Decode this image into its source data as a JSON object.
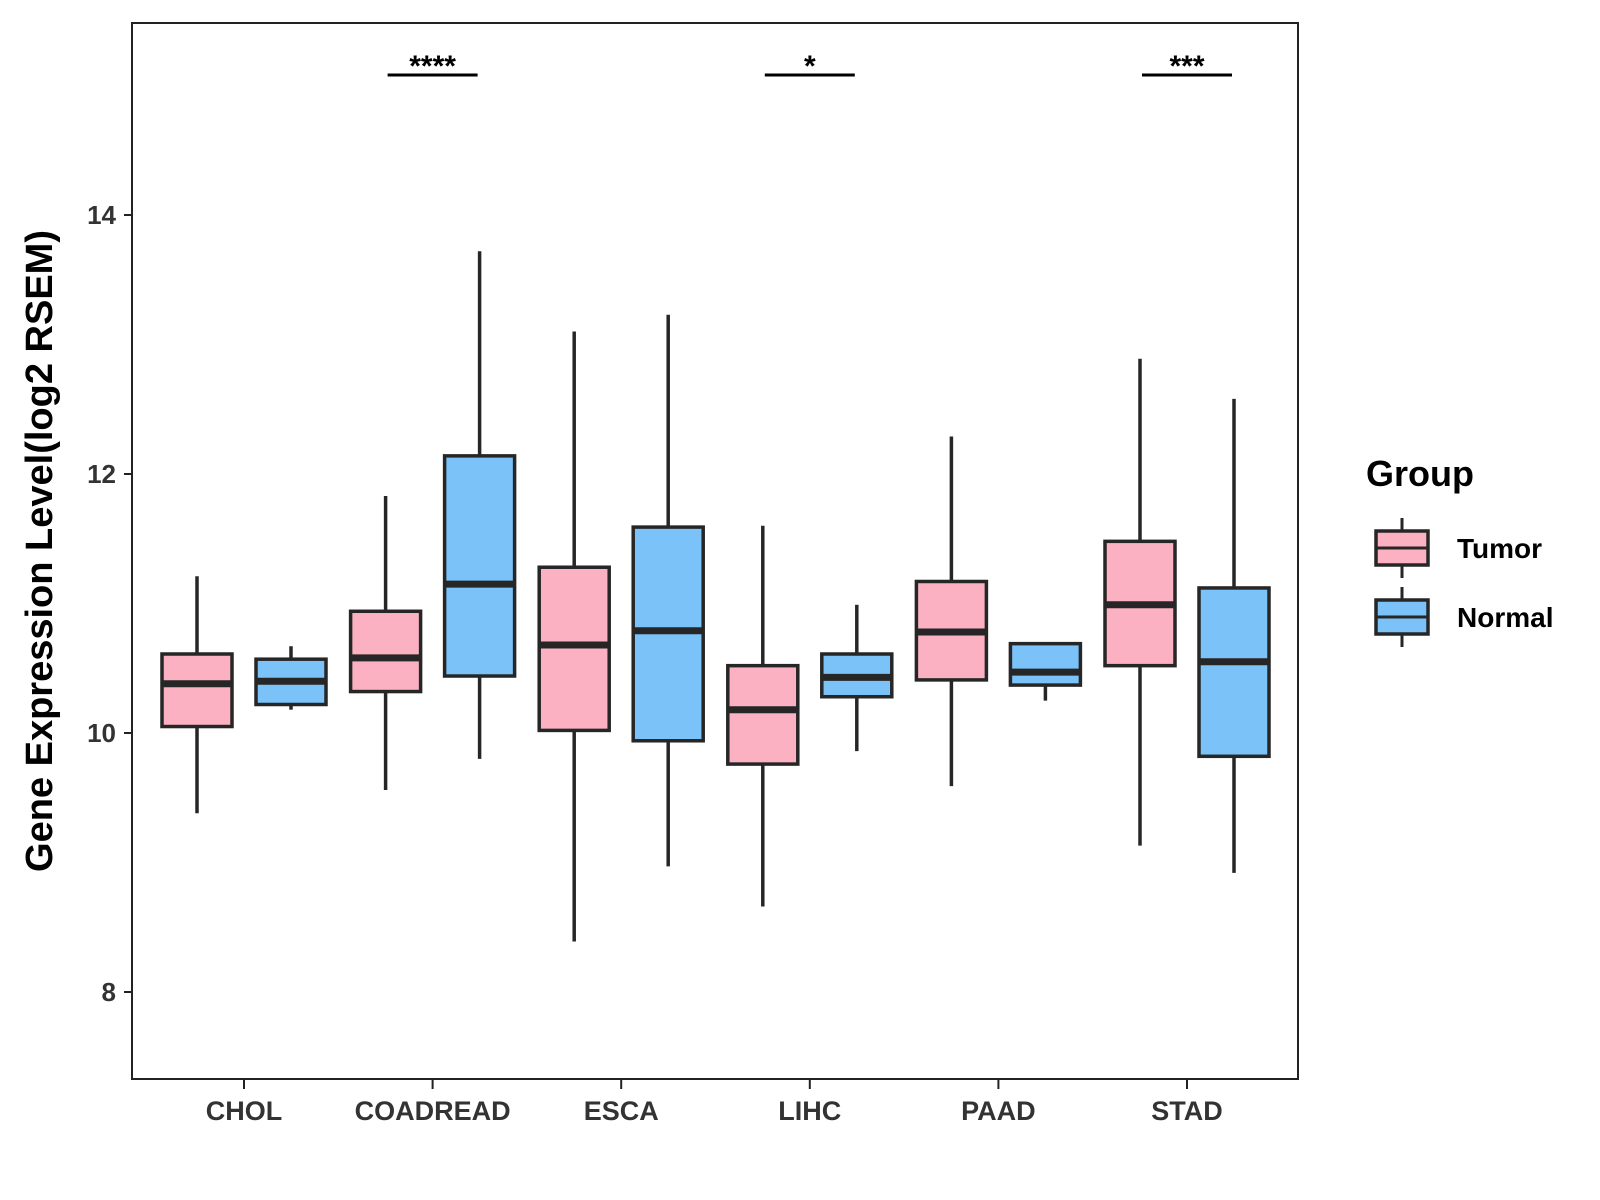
{
  "chart_data": {
    "type": "boxplot",
    "ylabel": "Gene Expression Level(log2 RSEM)",
    "xlabel": "",
    "ylim": [
      7.33,
      15.5
    ],
    "yticks": [
      8,
      10,
      12,
      14
    ],
    "categories": [
      "CHOL",
      "COADREAD",
      "ESCA",
      "LIHC",
      "PAAD",
      "STAD"
    ],
    "legend": {
      "title": "Group",
      "position": "right",
      "entries": [
        "Tumor",
        "Normal"
      ]
    },
    "colors": {
      "Tumor": "#FBB1C2",
      "Normal": "#7AC2F8",
      "outline": "#262626"
    },
    "series": [
      {
        "name": "Tumor",
        "boxes": [
          {
            "min": 9.38,
            "q1": 10.05,
            "median": 10.38,
            "q3": 10.61,
            "max": 11.21
          },
          {
            "min": 9.56,
            "q1": 10.32,
            "median": 10.58,
            "q3": 10.94,
            "max": 11.83
          },
          {
            "min": 8.39,
            "q1": 10.02,
            "median": 10.68,
            "q3": 11.28,
            "max": 13.1
          },
          {
            "min": 8.66,
            "q1": 9.76,
            "median": 10.18,
            "q3": 10.52,
            "max": 11.6
          },
          {
            "min": 9.59,
            "q1": 10.41,
            "median": 10.78,
            "q3": 11.17,
            "max": 12.29
          },
          {
            "min": 9.13,
            "q1": 10.52,
            "median": 10.99,
            "q3": 11.48,
            "max": 12.89
          }
        ]
      },
      {
        "name": "Normal",
        "boxes": [
          {
            "min": 10.18,
            "q1": 10.22,
            "median": 10.4,
            "q3": 10.57,
            "max": 10.67
          },
          {
            "min": 9.8,
            "q1": 10.44,
            "median": 11.15,
            "q3": 12.14,
            "max": 13.72
          },
          {
            "min": 8.97,
            "q1": 9.94,
            "median": 10.79,
            "q3": 11.59,
            "max": 13.23
          },
          {
            "min": 9.86,
            "q1": 10.28,
            "median": 10.43,
            "q3": 10.61,
            "max": 10.99
          },
          {
            "min": 10.25,
            "q1": 10.37,
            "median": 10.47,
            "q3": 10.69,
            "max": 10.69
          },
          {
            "min": 8.92,
            "q1": 9.82,
            "median": 10.55,
            "q3": 11.12,
            "max": 12.58
          }
        ]
      }
    ],
    "significance": [
      {
        "category": "CHOL",
        "label": ""
      },
      {
        "category": "COADREAD",
        "label": "****"
      },
      {
        "category": "ESCA",
        "label": ""
      },
      {
        "category": "LIHC",
        "label": "*"
      },
      {
        "category": "PAAD",
        "label": ""
      },
      {
        "category": "STAD",
        "label": "***"
      }
    ]
  }
}
